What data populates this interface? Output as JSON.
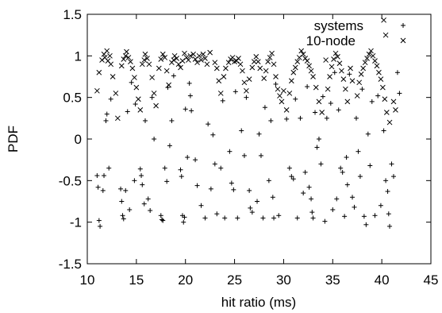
{
  "chart_data": {
    "type": "scatter",
    "title": "",
    "xlabel": "hit ratio (ms)",
    "ylabel": "PDF",
    "xlim": [
      10,
      45
    ],
    "ylim": [
      -1.5,
      1.5
    ],
    "xticks": [
      "10",
      "15",
      "20",
      "25",
      "30",
      "35",
      "40",
      "45"
    ],
    "yticks": [
      "-1.5",
      "-1",
      "-0.5",
      "0",
      "0.5",
      "1",
      "1.5"
    ],
    "grid": false,
    "legend_position": "top-right",
    "series": [
      {
        "name": "systems",
        "marker": "+",
        "color": "#000000",
        "points": [
          [
            11.0,
            -0.44
          ],
          [
            11.1,
            -0.58
          ],
          [
            11.2,
            -0.98
          ],
          [
            11.3,
            -1.05
          ],
          [
            11.6,
            -0.62
          ],
          [
            11.7,
            -0.44
          ],
          [
            11.9,
            0.22
          ],
          [
            12.0,
            0.3
          ],
          [
            12.2,
            -0.35
          ],
          [
            12.4,
            0.48
          ],
          [
            13.4,
            -0.6
          ],
          [
            13.5,
            -0.75
          ],
          [
            13.6,
            -0.92
          ],
          [
            13.7,
            -0.96
          ],
          [
            13.9,
            -0.62
          ],
          [
            14.1,
            0.33
          ],
          [
            14.3,
            -0.85
          ],
          [
            14.5,
            0.68
          ],
          [
            14.8,
            -0.5
          ],
          [
            14.9,
            0.42
          ],
          [
            15.4,
            -0.36
          ],
          [
            15.5,
            -0.44
          ],
          [
            15.6,
            -0.55
          ],
          [
            15.8,
            -0.78
          ],
          [
            15.9,
            0.22
          ],
          [
            16.2,
            -0.72
          ],
          [
            16.4,
            -0.86
          ],
          [
            16.6,
            0.5
          ],
          [
            16.8,
            0.0
          ],
          [
            17.5,
            -0.92
          ],
          [
            17.6,
            -0.97
          ],
          [
            17.7,
            -0.98
          ],
          [
            17.9,
            -0.35
          ],
          [
            18.1,
            -0.51
          ],
          [
            18.2,
            0.62
          ],
          [
            18.4,
            -0.08
          ],
          [
            18.6,
            0.22
          ],
          [
            18.8,
            0.76
          ],
          [
            19.5,
            -0.37
          ],
          [
            19.6,
            -0.45
          ],
          [
            19.7,
            -0.92
          ],
          [
            19.8,
            -1.0
          ],
          [
            19.9,
            -0.94
          ],
          [
            20.0,
            0.36
          ],
          [
            20.2,
            -0.22
          ],
          [
            20.4,
            0.67
          ],
          [
            20.5,
            0.52
          ],
          [
            20.6,
            0.34
          ],
          [
            21.0,
            -0.25
          ],
          [
            21.2,
            -0.56
          ],
          [
            21.6,
            -0.8
          ],
          [
            22.0,
            -0.95
          ],
          [
            22.3,
            0.18
          ],
          [
            22.6,
            -0.6
          ],
          [
            22.8,
            0.05
          ],
          [
            23.0,
            -0.3
          ],
          [
            23.2,
            -0.9
          ],
          [
            23.6,
            -0.35
          ],
          [
            23.8,
            0.46
          ],
          [
            24.0,
            -0.95
          ],
          [
            24.5,
            -0.15
          ],
          [
            24.7,
            -0.53
          ],
          [
            24.9,
            -0.61
          ],
          [
            25.1,
            0.57
          ],
          [
            25.3,
            -0.95
          ],
          [
            25.7,
            0.1
          ],
          [
            26.0,
            -0.2
          ],
          [
            26.2,
            0.5
          ],
          [
            26.5,
            -0.62
          ],
          [
            26.6,
            -0.83
          ],
          [
            26.8,
            -0.88
          ],
          [
            27.3,
            -0.75
          ],
          [
            27.5,
            0.06
          ],
          [
            27.7,
            -0.2
          ],
          [
            27.9,
            -0.95
          ],
          [
            28.1,
            0.38
          ],
          [
            28.5,
            -0.5
          ],
          [
            28.7,
            0.22
          ],
          [
            28.9,
            -0.7
          ],
          [
            29.0,
            -0.95
          ],
          [
            29.2,
            0.66
          ],
          [
            29.5,
            -0.92
          ],
          [
            30.3,
            0.24
          ],
          [
            30.6,
            -0.35
          ],
          [
            30.8,
            -0.45
          ],
          [
            31.0,
            -0.48
          ],
          [
            31.2,
            0.48
          ],
          [
            31.4,
            -0.95
          ],
          [
            31.7,
            0.25
          ],
          [
            32.0,
            -0.65
          ],
          [
            32.2,
            -0.4
          ],
          [
            32.4,
            0.63
          ],
          [
            32.6,
            -0.58
          ],
          [
            32.8,
            -0.72
          ],
          [
            32.9,
            -0.88
          ],
          [
            33.0,
            -0.95
          ],
          [
            33.2,
            0.32
          ],
          [
            33.4,
            -0.1
          ],
          [
            33.6,
            0.0
          ],
          [
            33.8,
            -0.3
          ],
          [
            34.0,
            0.51
          ],
          [
            34.2,
            -0.99
          ],
          [
            34.4,
            0.25
          ],
          [
            34.8,
            0.43
          ],
          [
            35.0,
            -0.85
          ],
          [
            35.2,
            0.8
          ],
          [
            35.4,
            -0.72
          ],
          [
            35.6,
            0.35
          ],
          [
            35.8,
            -0.35
          ],
          [
            36.0,
            -0.4
          ],
          [
            36.2,
            -0.93
          ],
          [
            36.4,
            -0.22
          ],
          [
            36.5,
            -0.55
          ],
          [
            36.7,
            0.78
          ],
          [
            37.0,
            -0.7
          ],
          [
            37.2,
            -0.82
          ],
          [
            37.4,
            0.25
          ],
          [
            37.6,
            -0.15
          ],
          [
            37.8,
            -0.45
          ],
          [
            38.0,
            0.6
          ],
          [
            38.2,
            -0.93
          ],
          [
            38.4,
            -1.03
          ],
          [
            38.6,
            0.06
          ],
          [
            38.8,
            -0.32
          ],
          [
            39.0,
            0.45
          ],
          [
            39.3,
            -0.92
          ],
          [
            39.6,
            0.52
          ],
          [
            39.9,
            -0.8
          ],
          [
            40.2,
            0.1
          ],
          [
            40.4,
            -0.5
          ],
          [
            40.6,
            -0.63
          ],
          [
            40.7,
            -0.9
          ],
          [
            40.8,
            -1.05
          ],
          [
            41.0,
            -0.3
          ],
          [
            41.2,
            -0.45
          ],
          [
            41.6,
            0.8
          ],
          [
            41.8,
            0.55
          ]
        ]
      },
      {
        "name": "10-node",
        "marker": "x",
        "color": "#000000",
        "points": [
          [
            11.0,
            0.58
          ],
          [
            11.2,
            0.8
          ],
          [
            11.5,
            0.95
          ],
          [
            11.7,
            1.02
          ],
          [
            11.8,
            0.98
          ],
          [
            12.0,
            1.06
          ],
          [
            12.1,
            0.94
          ],
          [
            12.3,
            1.0
          ],
          [
            12.4,
            0.9
          ],
          [
            12.6,
            0.75
          ],
          [
            12.9,
            0.55
          ],
          [
            13.1,
            0.25
          ],
          [
            13.5,
            0.88
          ],
          [
            13.7,
            0.96
          ],
          [
            13.9,
            1.0
          ],
          [
            14.0,
            1.05
          ],
          [
            14.2,
            0.98
          ],
          [
            14.4,
            0.93
          ],
          [
            14.6,
            0.85
          ],
          [
            14.8,
            0.74
          ],
          [
            15.0,
            0.62
          ],
          [
            15.2,
            0.48
          ],
          [
            15.4,
            0.35
          ],
          [
            15.6,
            0.9
          ],
          [
            15.8,
            0.95
          ],
          [
            15.9,
            1.02
          ],
          [
            16.1,
            0.97
          ],
          [
            16.3,
            0.9
          ],
          [
            16.6,
            0.74
          ],
          [
            16.8,
            0.55
          ],
          [
            17.0,
            0.4
          ],
          [
            17.3,
            0.85
          ],
          [
            17.5,
            0.96
          ],
          [
            17.7,
            1.02
          ],
          [
            17.9,
            0.98
          ],
          [
            18.1,
            0.82
          ],
          [
            18.3,
            0.65
          ],
          [
            18.6,
            0.92
          ],
          [
            18.8,
            0.95
          ],
          [
            18.9,
            1.0
          ],
          [
            19.1,
            0.97
          ],
          [
            19.3,
            0.9
          ],
          [
            19.5,
            0.86
          ],
          [
            19.7,
            0.94
          ],
          [
            19.9,
            1.03
          ],
          [
            20.1,
            0.98
          ],
          [
            20.3,
            0.95
          ],
          [
            20.5,
            1.0
          ],
          [
            20.8,
            1.02
          ],
          [
            21.0,
            0.96
          ],
          [
            21.2,
            0.92
          ],
          [
            21.4,
            1.0
          ],
          [
            21.6,
            0.95
          ],
          [
            21.8,
            1.02
          ],
          [
            22.0,
            0.97
          ],
          [
            22.2,
            0.9
          ],
          [
            22.5,
            1.04
          ],
          [
            23.0,
            0.92
          ],
          [
            23.2,
            0.85
          ],
          [
            23.4,
            0.7
          ],
          [
            23.6,
            0.55
          ],
          [
            23.9,
            0.75
          ],
          [
            24.1,
            0.85
          ],
          [
            24.4,
            0.92
          ],
          [
            24.6,
            0.96
          ],
          [
            24.8,
            0.98
          ],
          [
            25.0,
            0.93
          ],
          [
            25.2,
            0.94
          ],
          [
            25.4,
            0.97
          ],
          [
            25.6,
            0.9
          ],
          [
            25.8,
            0.82
          ],
          [
            26.0,
            0.68
          ],
          [
            26.2,
            0.58
          ],
          [
            26.5,
            0.72
          ],
          [
            26.8,
            0.86
          ],
          [
            27.0,
            0.93
          ],
          [
            27.2,
            0.99
          ],
          [
            27.4,
            0.93
          ],
          [
            27.6,
            0.85
          ],
          [
            28.0,
            0.73
          ],
          [
            28.2,
            0.82
          ],
          [
            28.4,
            0.93
          ],
          [
            28.6,
            0.98
          ],
          [
            28.8,
            1.03
          ],
          [
            29.0,
            0.9
          ],
          [
            29.2,
            0.75
          ],
          [
            29.4,
            0.6
          ],
          [
            29.6,
            0.52
          ],
          [
            29.8,
            0.45
          ],
          [
            30.0,
            0.58
          ],
          [
            30.3,
            0.35
          ],
          [
            30.6,
            0.55
          ],
          [
            30.8,
            0.7
          ],
          [
            31.0,
            0.8
          ],
          [
            31.2,
            0.86
          ],
          [
            31.4,
            0.93
          ],
          [
            31.6,
            0.98
          ],
          [
            31.8,
            1.06
          ],
          [
            32.0,
            1.02
          ],
          [
            32.2,
            0.97
          ],
          [
            32.4,
            0.94
          ],
          [
            32.6,
            0.88
          ],
          [
            32.8,
            0.82
          ],
          [
            33.0,
            0.75
          ],
          [
            33.3,
            0.62
          ],
          [
            33.6,
            0.45
          ],
          [
            33.9,
            0.32
          ],
          [
            34.3,
            0.95
          ],
          [
            34.5,
            0.6
          ],
          [
            34.7,
            0.75
          ],
          [
            34.9,
            0.87
          ],
          [
            35.1,
            0.96
          ],
          [
            35.3,
            1.03
          ],
          [
            35.5,
            0.99
          ],
          [
            35.7,
            0.91
          ],
          [
            35.9,
            0.82
          ],
          [
            36.1,
            0.72
          ],
          [
            36.3,
            0.6
          ],
          [
            36.5,
            0.45
          ],
          [
            36.8,
            0.85
          ],
          [
            37.0,
            0.7
          ],
          [
            37.5,
            0.52
          ],
          [
            37.7,
            0.68
          ],
          [
            37.9,
            0.78
          ],
          [
            38.1,
            0.85
          ],
          [
            38.3,
            0.92
          ],
          [
            38.5,
            0.97
          ],
          [
            38.7,
            1.02
          ],
          [
            38.9,
            1.06
          ],
          [
            39.1,
            1.0
          ],
          [
            39.3,
            0.94
          ],
          [
            39.5,
            0.88
          ],
          [
            39.7,
            0.8
          ],
          [
            39.9,
            0.72
          ],
          [
            40.1,
            0.62
          ],
          [
            40.3,
            0.48
          ],
          [
            40.5,
            0.32
          ],
          [
            40.8,
            0.2
          ],
          [
            40.2,
            1.43
          ],
          [
            40.4,
            1.25
          ],
          [
            41.2,
            0.45
          ],
          [
            41.4,
            0.35
          ]
        ]
      }
    ]
  }
}
